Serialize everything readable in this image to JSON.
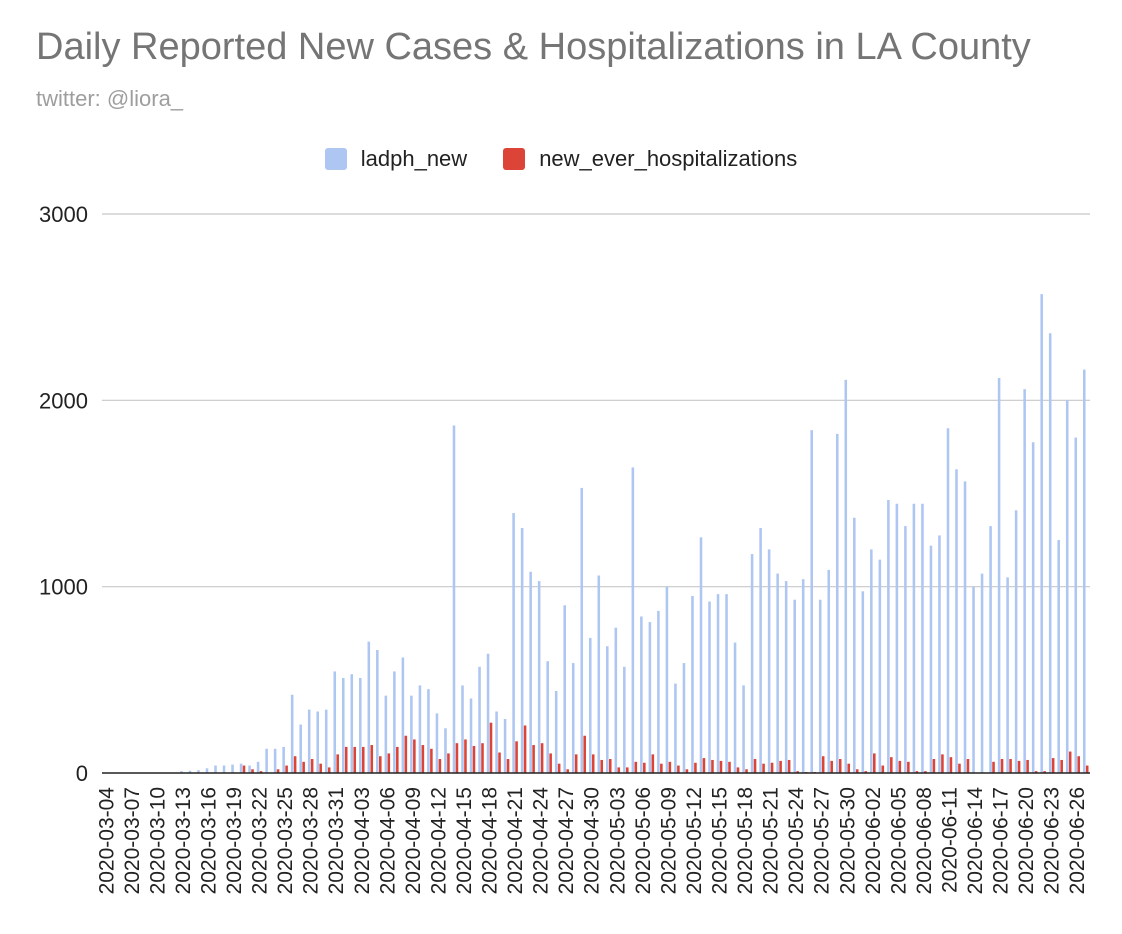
{
  "title": "Daily Reported New Cases & Hospitalizations in LA County",
  "subtitle": "twitter: @liora_",
  "colors": {
    "ladph_new": "#aec6f2",
    "new_ever_hospitalizations": "#db4437",
    "grid": "#c8c8c8",
    "axis": "#222222"
  },
  "legend": [
    {
      "label": "ladph_new",
      "color": "#aec6f2"
    },
    {
      "label": "new_ever_hospitalizations",
      "color": "#db4437"
    }
  ],
  "chart_data": {
    "type": "bar",
    "title": "Daily Reported New Cases & Hospitalizations in LA County",
    "subtitle": "twitter: @liora_",
    "xlabel": "",
    "ylabel": "",
    "ylim": [
      0,
      3000
    ],
    "yticks": [
      0,
      1000,
      2000,
      3000
    ],
    "grid": true,
    "legend_position": "top",
    "x_start": "2020-03-04",
    "x_end": "2020-06-28",
    "x_tick_labels": [
      "2020-03-04",
      "2020-03-07",
      "2020-03-10",
      "2020-03-13",
      "2020-03-16",
      "2020-03-19",
      "2020-03-22",
      "2020-03-25",
      "2020-03-28",
      "2020-03-31",
      "2020-04-03",
      "2020-04-06",
      "2020-04-09",
      "2020-04-12",
      "2020-04-15",
      "2020-04-18",
      "2020-04-21",
      "2020-04-24",
      "2020-04-27",
      "2020-04-30",
      "2020-05-03",
      "2020-05-06",
      "2020-05-09",
      "2020-05-12",
      "2020-05-15",
      "2020-05-18",
      "2020-05-21",
      "2020-05-24",
      "2020-05-27",
      "2020-05-30",
      "2020-06-02",
      "2020-06-05",
      "2020-06-08",
      "2020-06-11",
      "2020-06-14",
      "2020-06-17",
      "2020-06-20",
      "2020-06-23",
      "2020-06-26"
    ],
    "series": [
      {
        "name": "ladph_new",
        "color": "#aec6f2",
        "values": [
          0,
          0,
          0,
          0,
          0,
          0,
          0,
          0,
          0,
          10,
          12,
          15,
          25,
          40,
          40,
          45,
          50,
          40,
          60,
          130,
          130,
          140,
          420,
          260,
          340,
          330,
          340,
          545,
          510,
          530,
          510,
          705,
          660,
          415,
          545,
          620,
          415,
          470,
          450,
          320,
          240,
          1865,
          470,
          400,
          570,
          640,
          330,
          290,
          1395,
          1315,
          1080,
          1030,
          600,
          440,
          900,
          590,
          1530,
          725,
          1060,
          680,
          780,
          570,
          1640,
          840,
          810,
          870,
          1000,
          480,
          590,
          950,
          1265,
          920,
          960,
          960,
          700,
          470,
          1175,
          1315,
          1200,
          1070,
          1030,
          930,
          1040,
          1840,
          930,
          1090,
          1820,
          2110,
          1370,
          975,
          1200,
          1145,
          1465,
          1445,
          1325,
          1445,
          1445,
          1220,
          1275,
          1850,
          1630,
          1565,
          1000,
          1070,
          1325,
          2120,
          1050,
          1410,
          2060,
          1775,
          2570,
          2360,
          1250,
          2000,
          1800,
          2165
        ]
      },
      {
        "name": "new_ever_hospitalizations",
        "color": "#db4437",
        "values": [
          0,
          0,
          0,
          0,
          0,
          0,
          0,
          0,
          0,
          0,
          0,
          0,
          0,
          0,
          0,
          0,
          40,
          20,
          10,
          0,
          20,
          40,
          90,
          60,
          75,
          50,
          30,
          100,
          140,
          140,
          140,
          150,
          90,
          105,
          140,
          200,
          180,
          150,
          130,
          75,
          105,
          160,
          180,
          145,
          160,
          270,
          110,
          75,
          170,
          255,
          150,
          160,
          105,
          50,
          20,
          100,
          200,
          100,
          70,
          75,
          30,
          30,
          60,
          55,
          100,
          50,
          60,
          40,
          20,
          55,
          80,
          70,
          65,
          60,
          30,
          20,
          75,
          50,
          55,
          65,
          70,
          10,
          5,
          5,
          90,
          65,
          75,
          50,
          20,
          10,
          105,
          40,
          85,
          65,
          60,
          10,
          10,
          75,
          100,
          85,
          50,
          75,
          0,
          0,
          60,
          75,
          75,
          65,
          70,
          10,
          10,
          80,
          70,
          115,
          90,
          40
        ]
      }
    ]
  }
}
